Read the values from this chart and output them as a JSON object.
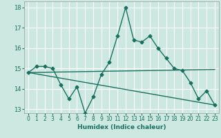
{
  "xlabel": "Humidex (Indice chaleur)",
  "ylabel": "",
  "background_color": "#cce8e0",
  "grid_color": "#ffffff",
  "line_color": "#1a7060",
  "xlim": [
    -0.5,
    23.5
  ],
  "ylim": [
    12.8,
    18.3
  ],
  "yticks": [
    13,
    14,
    15,
    16,
    17,
    18
  ],
  "xticks": [
    0,
    1,
    2,
    3,
    4,
    5,
    6,
    7,
    8,
    9,
    10,
    11,
    12,
    13,
    14,
    15,
    16,
    17,
    18,
    19,
    20,
    21,
    22,
    23
  ],
  "series1_x": [
    0,
    1,
    2,
    3,
    4,
    5,
    6,
    7,
    8,
    9,
    10,
    11,
    12,
    13,
    14,
    15,
    16,
    17,
    18,
    19,
    20,
    21,
    22,
    23
  ],
  "series1_y": [
    14.8,
    15.1,
    15.1,
    15.0,
    14.2,
    13.5,
    14.1,
    12.8,
    13.6,
    14.7,
    15.3,
    16.6,
    18.0,
    16.4,
    16.3,
    16.6,
    16.0,
    15.5,
    15.0,
    14.9,
    14.3,
    13.5,
    13.9,
    13.2
  ],
  "series2_x": [
    0,
    23
  ],
  "series2_y": [
    14.8,
    14.95
  ],
  "series3_x": [
    0,
    23
  ],
  "series3_y": [
    14.8,
    13.2
  ],
  "marker_size": 2.5,
  "line_width": 1.0
}
